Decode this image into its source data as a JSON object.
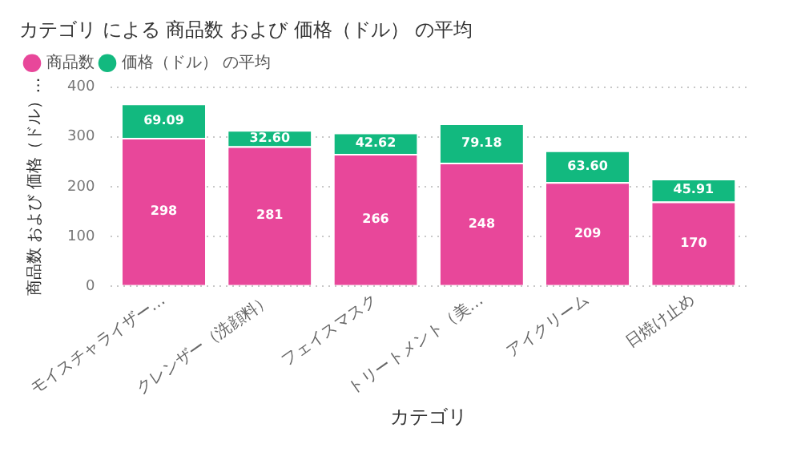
{
  "chart_data": {
    "type": "bar",
    "title": "カテゴリ による 商品数 および 価格（ドル） の平均",
    "xlabel": "カテゴリ",
    "ylabel": "商品数 および 価格（ドル）…",
    "categories": [
      "モイスチャライザー…",
      "クレンザー（洗顔料）",
      "フェイスマスク",
      "トリートメント（美…",
      "アイクリーム",
      "日焼け止め"
    ],
    "series": [
      {
        "name": "商品数",
        "color": "#e8479a",
        "values": [
          298,
          281,
          266,
          248,
          209,
          170
        ]
      },
      {
        "name": "価格（ドル） の平均",
        "color": "#12b97f",
        "values": [
          69.09,
          32.6,
          42.62,
          79.18,
          63.6,
          45.91
        ],
        "value_labels": [
          "69.09",
          "32.60",
          "42.62",
          "79.18",
          "63.60",
          "45.91"
        ]
      }
    ],
    "value_labels": [
      "298",
      "281",
      "266",
      "248",
      "209",
      "170"
    ],
    "stacked": true,
    "ylim": [
      0,
      400
    ],
    "yticks": [
      0,
      100,
      200,
      300,
      400
    ],
    "grid": "y",
    "legend": "top left"
  }
}
